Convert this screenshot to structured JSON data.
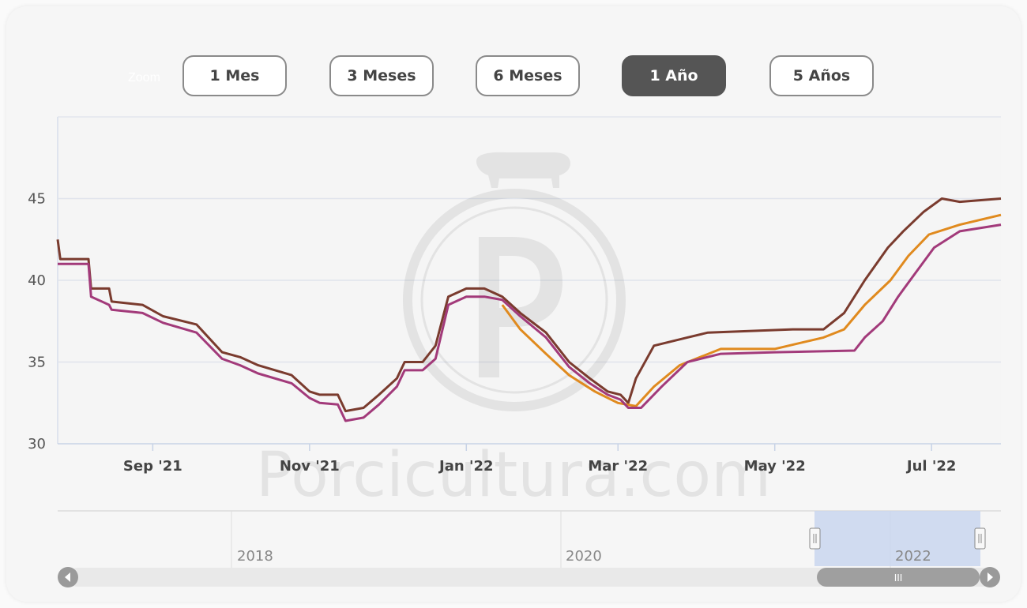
{
  "zoom": {
    "label": "Zoom",
    "buttons": [
      {
        "label": "1 Mes",
        "active": false
      },
      {
        "label": "3 Meses",
        "active": false
      },
      {
        "label": "6 Meses",
        "active": false
      },
      {
        "label": "1 Año",
        "active": true
      },
      {
        "label": "5 Años",
        "active": false
      }
    ]
  },
  "watermark": "Porcicultura.com",
  "navigator": {
    "year_labels": [
      "2018",
      "2020",
      "2022"
    ],
    "scroll_grip": "III"
  },
  "colors": {
    "series_brown": "#7a3b2e",
    "series_orange": "#e08a1e",
    "series_purple": "#a23a7a",
    "active_button": "#555555",
    "navigator_selection": "#c9d6ee"
  },
  "chart_data": {
    "type": "line",
    "title": "",
    "xlabel": "",
    "ylabel": "",
    "ylim": [
      30,
      50
    ],
    "yticks": [
      30,
      35,
      40,
      45
    ],
    "xlim": [
      "2021-07-26",
      "2022-07-28"
    ],
    "xticks": [
      {
        "label": "Sep '21",
        "date": "2021-09-01"
      },
      {
        "label": "Nov '21",
        "date": "2021-11-01"
      },
      {
        "label": "Jan '22",
        "date": "2022-01-01"
      },
      {
        "label": "Mar '22",
        "date": "2022-03-01"
      },
      {
        "label": "May '22",
        "date": "2022-05-01"
      },
      {
        "label": "Jul '22",
        "date": "2022-07-01"
      }
    ],
    "grid": true,
    "legend": "none",
    "series": [
      {
        "color": "#7a3b2e",
        "points": [
          [
            "2021-07-26",
            42.5
          ],
          [
            "2021-07-27",
            41.3
          ],
          [
            "2021-08-07",
            41.3
          ],
          [
            "2021-08-08",
            39.5
          ],
          [
            "2021-08-15",
            39.5
          ],
          [
            "2021-08-16",
            38.7
          ],
          [
            "2021-08-28",
            38.5
          ],
          [
            "2021-09-05",
            37.8
          ],
          [
            "2021-09-18",
            37.3
          ],
          [
            "2021-09-28",
            35.6
          ],
          [
            "2021-10-05",
            35.3
          ],
          [
            "2021-10-12",
            34.8
          ],
          [
            "2021-10-25",
            34.2
          ],
          [
            "2021-11-01",
            33.2
          ],
          [
            "2021-11-05",
            33.0
          ],
          [
            "2021-11-12",
            33.0
          ],
          [
            "2021-11-15",
            32.0
          ],
          [
            "2021-11-22",
            32.2
          ],
          [
            "2021-11-28",
            33.0
          ],
          [
            "2021-12-05",
            34.0
          ],
          [
            "2021-12-08",
            35.0
          ],
          [
            "2021-12-15",
            35.0
          ],
          [
            "2021-12-20",
            36.0
          ],
          [
            "2021-12-25",
            39.0
          ],
          [
            "2022-01-01",
            39.5
          ],
          [
            "2022-01-08",
            39.5
          ],
          [
            "2022-01-15",
            39.0
          ],
          [
            "2022-01-22",
            38.0
          ],
          [
            "2022-02-01",
            36.8
          ],
          [
            "2022-02-10",
            35.0
          ],
          [
            "2022-02-18",
            34.0
          ],
          [
            "2022-02-25",
            33.2
          ],
          [
            "2022-03-02",
            33.0
          ],
          [
            "2022-03-05",
            32.5
          ],
          [
            "2022-03-08",
            34.0
          ],
          [
            "2022-03-15",
            36.0
          ],
          [
            "2022-03-28",
            36.5
          ],
          [
            "2022-04-05",
            36.8
          ],
          [
            "2022-05-08",
            37.0
          ],
          [
            "2022-05-20",
            37.0
          ],
          [
            "2022-05-28",
            38.0
          ],
          [
            "2022-06-05",
            40.0
          ],
          [
            "2022-06-14",
            42.0
          ],
          [
            "2022-06-20",
            43.0
          ],
          [
            "2022-06-28",
            44.2
          ],
          [
            "2022-07-05",
            45.0
          ],
          [
            "2022-07-12",
            44.8
          ],
          [
            "2022-07-28",
            45.0
          ]
        ]
      },
      {
        "color": "#e08a1e",
        "points": [
          [
            "2022-01-15",
            38.5
          ],
          [
            "2022-01-22",
            37.0
          ],
          [
            "2022-02-01",
            35.5
          ],
          [
            "2022-02-10",
            34.2
          ],
          [
            "2022-02-20",
            33.2
          ],
          [
            "2022-03-01",
            32.5
          ],
          [
            "2022-03-08",
            32.3
          ],
          [
            "2022-03-15",
            33.5
          ],
          [
            "2022-03-25",
            34.8
          ],
          [
            "2022-04-10",
            35.8
          ],
          [
            "2022-05-01",
            35.8
          ],
          [
            "2022-05-20",
            36.5
          ],
          [
            "2022-05-28",
            37.0
          ],
          [
            "2022-06-05",
            38.5
          ],
          [
            "2022-06-15",
            40.0
          ],
          [
            "2022-06-22",
            41.5
          ],
          [
            "2022-06-30",
            42.8
          ],
          [
            "2022-07-12",
            43.4
          ],
          [
            "2022-07-28",
            44.0
          ]
        ]
      },
      {
        "color": "#a23a7a",
        "points": [
          [
            "2021-07-26",
            41.0
          ],
          [
            "2021-08-07",
            41.0
          ],
          [
            "2021-08-08",
            39.0
          ],
          [
            "2021-08-15",
            38.5
          ],
          [
            "2021-08-16",
            38.2
          ],
          [
            "2021-08-28",
            38.0
          ],
          [
            "2021-09-05",
            37.4
          ],
          [
            "2021-09-18",
            36.8
          ],
          [
            "2021-09-28",
            35.2
          ],
          [
            "2021-10-05",
            34.8
          ],
          [
            "2021-10-12",
            34.3
          ],
          [
            "2021-10-25",
            33.7
          ],
          [
            "2021-11-01",
            32.8
          ],
          [
            "2021-11-05",
            32.5
          ],
          [
            "2021-11-12",
            32.4
          ],
          [
            "2021-11-15",
            31.4
          ],
          [
            "2021-11-22",
            31.6
          ],
          [
            "2021-11-28",
            32.4
          ],
          [
            "2021-12-05",
            33.5
          ],
          [
            "2021-12-08",
            34.5
          ],
          [
            "2021-12-15",
            34.5
          ],
          [
            "2021-12-20",
            35.2
          ],
          [
            "2021-12-25",
            38.5
          ],
          [
            "2022-01-01",
            39.0
          ],
          [
            "2022-01-08",
            39.0
          ],
          [
            "2022-01-15",
            38.8
          ],
          [
            "2022-01-22",
            37.8
          ],
          [
            "2022-02-01",
            36.5
          ],
          [
            "2022-02-10",
            34.7
          ],
          [
            "2022-02-18",
            33.7
          ],
          [
            "2022-02-25",
            33.0
          ],
          [
            "2022-03-02",
            32.7
          ],
          [
            "2022-03-05",
            32.2
          ],
          [
            "2022-03-10",
            32.2
          ],
          [
            "2022-03-18",
            33.5
          ],
          [
            "2022-03-28",
            35.0
          ],
          [
            "2022-04-10",
            35.5
          ],
          [
            "2022-05-01",
            35.6
          ],
          [
            "2022-06-01",
            35.7
          ],
          [
            "2022-06-05",
            36.5
          ],
          [
            "2022-06-12",
            37.5
          ],
          [
            "2022-06-18",
            39.0
          ],
          [
            "2022-06-25",
            40.5
          ],
          [
            "2022-07-02",
            42.0
          ],
          [
            "2022-07-12",
            43.0
          ],
          [
            "2022-07-28",
            43.4
          ]
        ]
      }
    ]
  }
}
